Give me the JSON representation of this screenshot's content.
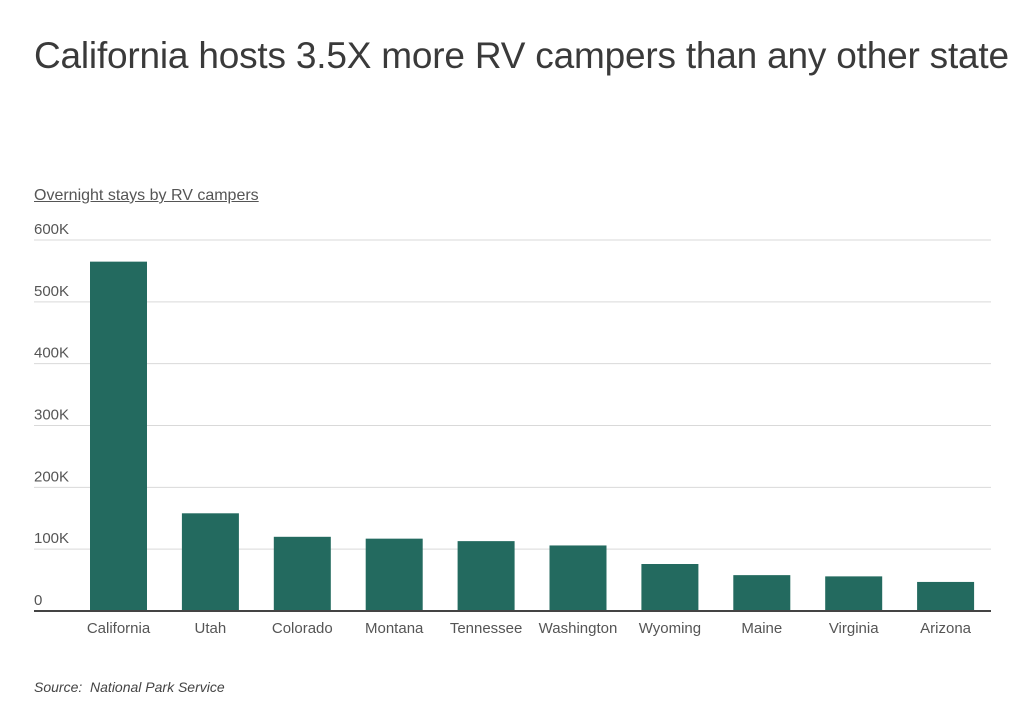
{
  "page": {
    "title": "California hosts 3.5X more RV campers than any other state",
    "subtitle": "Overnight stays by RV campers",
    "source_label": "Source:",
    "source_value": "National Park Service"
  },
  "colors": {
    "bar": "#236a5f",
    "grid": "#d9d9d9",
    "baseline": "#444444",
    "text": "#555555"
  },
  "chart_data": {
    "type": "bar",
    "title": "California hosts 3.5X more RV campers than any other state",
    "subtitle": "Overnight stays by RV campers",
    "xlabel": "",
    "ylabel": "",
    "categories": [
      "California",
      "Utah",
      "Colorado",
      "Montana",
      "Tennessee",
      "Washington",
      "Wyoming",
      "Maine",
      "Virginia",
      "Arizona"
    ],
    "values": [
      565000,
      158000,
      120000,
      117000,
      113000,
      106000,
      76000,
      58000,
      56000,
      47000
    ],
    "ylim": [
      0,
      600000
    ],
    "yticks": [
      0,
      100000,
      200000,
      300000,
      400000,
      500000,
      600000
    ],
    "ytick_labels": [
      "0",
      "100K",
      "200K",
      "300K",
      "400K",
      "500K",
      "600K"
    ],
    "grid": true,
    "legend": "none"
  }
}
